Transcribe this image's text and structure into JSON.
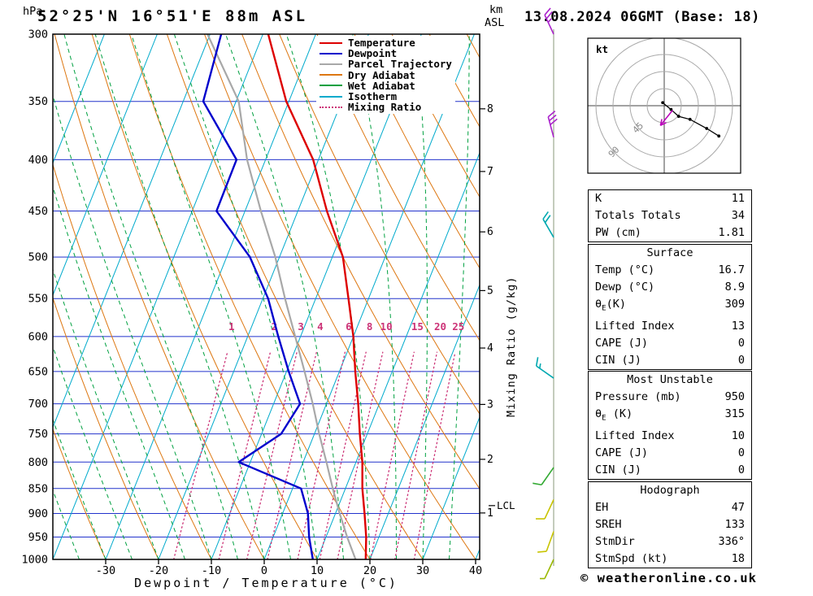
{
  "header": {
    "station": "52°25'N 16°51'E 88m ASL",
    "datetime": "13.08.2024 06GMT (Base: 18)"
  },
  "axes": {
    "pressure_label": "hPa",
    "km_label_1": "km",
    "km_label_2": "ASL",
    "x_label": "Dewpoint / Temperature (°C)",
    "mixing_label": "Mixing Ratio (g/kg)",
    "pressure_ticks": [
      300,
      350,
      400,
      450,
      500,
      550,
      600,
      650,
      700,
      750,
      800,
      850,
      900,
      950,
      1000
    ],
    "temp_ticks": [
      -30,
      -20,
      -10,
      0,
      10,
      20,
      30,
      40
    ],
    "km_ticks": [
      {
        "km": 8,
        "p": 356
      },
      {
        "km": 7,
        "p": 411
      },
      {
        "km": 6,
        "p": 472
      },
      {
        "km": 5,
        "p": 540
      },
      {
        "km": 4,
        "p": 616
      },
      {
        "km": 3,
        "p": 701
      },
      {
        "km": 2,
        "p": 795
      },
      {
        "km": 1,
        "p": 899
      }
    ],
    "lcl": {
      "label": "LCL",
      "p": 884
    }
  },
  "legend": {
    "items": [
      {
        "label": "Temperature",
        "color_key": "temperature",
        "dash": "solid"
      },
      {
        "label": "Dewpoint",
        "color_key": "dewpoint",
        "dash": "solid"
      },
      {
        "label": "Parcel Trajectory",
        "color_key": "parcel",
        "dash": "solid"
      },
      {
        "label": "Dry Adiabat",
        "color_key": "dry_adiabat",
        "dash": "solid"
      },
      {
        "label": "Wet Adiabat",
        "color_key": "wet_adiabat",
        "dash": "solid"
      },
      {
        "label": "Isotherm",
        "color_key": "isotherm",
        "dash": "solid"
      },
      {
        "label": "Mixing Ratio",
        "color_key": "mixing_ratio",
        "dash": "dotted"
      }
    ]
  },
  "colors": {
    "temperature": "#dd0000",
    "dewpoint": "#0000cc",
    "parcel": "#a8a8a8",
    "dry_adiabat": "#dd7711",
    "wet_adiabat": "#00a040",
    "isotherm": "#00aacc",
    "mixing_ratio": "#cc3377",
    "grid": "#2233cc",
    "frame": "#000000",
    "wind_staff": "#8a9a78"
  },
  "chart_data": {
    "type": "skewt_sounding",
    "pressure_range_hPa": [
      300,
      1000
    ],
    "temp_axis_range_c": [
      -40,
      40
    ],
    "temperature_profile": [
      [
        1000,
        19.2
      ],
      [
        950,
        17.6
      ],
      [
        900,
        15.5
      ],
      [
        850,
        13.2
      ],
      [
        800,
        11.2
      ],
      [
        750,
        8.6
      ],
      [
        700,
        6.0
      ],
      [
        650,
        3.0
      ],
      [
        600,
        0.0
      ],
      [
        550,
        -3.8
      ],
      [
        500,
        -8.0
      ],
      [
        450,
        -14.5
      ],
      [
        400,
        -21.0
      ],
      [
        350,
        -30.5
      ],
      [
        300,
        -39.0
      ]
    ],
    "dewpoint_profile": [
      [
        1000,
        9.2
      ],
      [
        950,
        6.8
      ],
      [
        900,
        4.8
      ],
      [
        850,
        1.6
      ],
      [
        800,
        -12.2
      ],
      [
        750,
        -6.3
      ],
      [
        700,
        -5.0
      ],
      [
        650,
        -9.6
      ],
      [
        600,
        -14.2
      ],
      [
        550,
        -19.0
      ],
      [
        500,
        -25.6
      ],
      [
        450,
        -35.4
      ],
      [
        400,
        -35.5
      ],
      [
        350,
        -46.2
      ],
      [
        300,
        -47.9
      ]
    ],
    "parcel_profile": [
      [
        1000,
        17.3
      ],
      [
        950,
        14.0
      ],
      [
        900,
        10.8
      ],
      [
        850,
        7.6
      ],
      [
        800,
        4.4
      ],
      [
        750,
        0.9
      ],
      [
        700,
        -2.6
      ],
      [
        650,
        -6.6
      ],
      [
        600,
        -11.0
      ],
      [
        550,
        -15.8
      ],
      [
        500,
        -20.8
      ],
      [
        450,
        -27.0
      ],
      [
        400,
        -33.5
      ],
      [
        350,
        -39.5
      ],
      [
        300,
        -50.5
      ]
    ],
    "isotherms": {
      "min": -80,
      "max": 40,
      "step": 10
    },
    "dry_adiabats": {
      "min": -40,
      "max": 130,
      "step": 10
    },
    "wet_adiabats": {
      "min": -40,
      "max": 35,
      "step": 5
    },
    "mixing_ratio_values": [
      1,
      2,
      3,
      4,
      6,
      8,
      10,
      15,
      20,
      25
    ],
    "wind_barbs": [
      {
        "p": 300,
        "dir_deg": 335,
        "speed_kt": 25,
        "color": "#aa22cc"
      },
      {
        "p": 380,
        "dir_deg": 345,
        "speed_kt": 30,
        "color": "#aa22cc"
      },
      {
        "p": 478,
        "dir_deg": 330,
        "speed_kt": 20,
        "color": "#00a8b0"
      },
      {
        "p": 660,
        "dir_deg": 305,
        "speed_kt": 15,
        "color": "#00a8b0"
      },
      {
        "p": 810,
        "dir_deg": 215,
        "speed_kt": 10,
        "color": "#33aa33"
      },
      {
        "p": 872,
        "dir_deg": 205,
        "speed_kt": 10,
        "color": "#c8c400"
      },
      {
        "p": 938,
        "dir_deg": 200,
        "speed_kt": 10,
        "color": "#c8c400"
      },
      {
        "p": 1000,
        "dir_deg": 205,
        "speed_kt": 5,
        "color": "#9ab800"
      }
    ],
    "hodograph": {
      "unit": "kt",
      "rings_kt": [
        22.5,
        45,
        67.5,
        90
      ],
      "ring_labels": [
        {
          "text": "45",
          "ring": 1
        },
        {
          "text": "90",
          "ring": 3
        }
      ],
      "trace_uv_kt": [
        [
          -2,
          -4
        ],
        [
          9,
          5
        ],
        [
          19,
          14
        ],
        [
          34,
          18
        ],
        [
          56,
          30
        ],
        [
          72,
          40
        ]
      ],
      "storm_arrow_uv_kt": [
        [
          11,
          6
        ],
        [
          -5,
          26
        ]
      ]
    }
  },
  "panels": [
    {
      "rows": [
        [
          "K",
          "11"
        ],
        [
          "Totals Totals",
          "34"
        ],
        [
          "PW (cm)",
          "1.81"
        ]
      ]
    },
    {
      "header": "Surface",
      "rows": [
        [
          "Temp (°C)",
          "16.7"
        ],
        [
          "Dewp (°C)",
          "8.9"
        ],
        [
          "θE(K)",
          "309"
        ],
        [
          "Lifted Index",
          "13"
        ],
        [
          "CAPE (J)",
          "0"
        ],
        [
          "CIN (J)",
          "0"
        ]
      ]
    },
    {
      "header": "Most Unstable",
      "rows": [
        [
          "Pressure (mb)",
          "950"
        ],
        [
          "θE (K)",
          "315"
        ],
        [
          "Lifted Index",
          "10"
        ],
        [
          "CAPE (J)",
          "0"
        ],
        [
          "CIN (J)",
          "0"
        ]
      ]
    },
    {
      "header": "Hodograph",
      "rows": [
        [
          "EH",
          "47"
        ],
        [
          "SREH",
          "133"
        ],
        [
          "StmDir",
          "336°"
        ],
        [
          "StmSpd (kt)",
          "18"
        ]
      ]
    }
  ],
  "footer": {
    "copyright": "© weatheronline.co.uk"
  }
}
